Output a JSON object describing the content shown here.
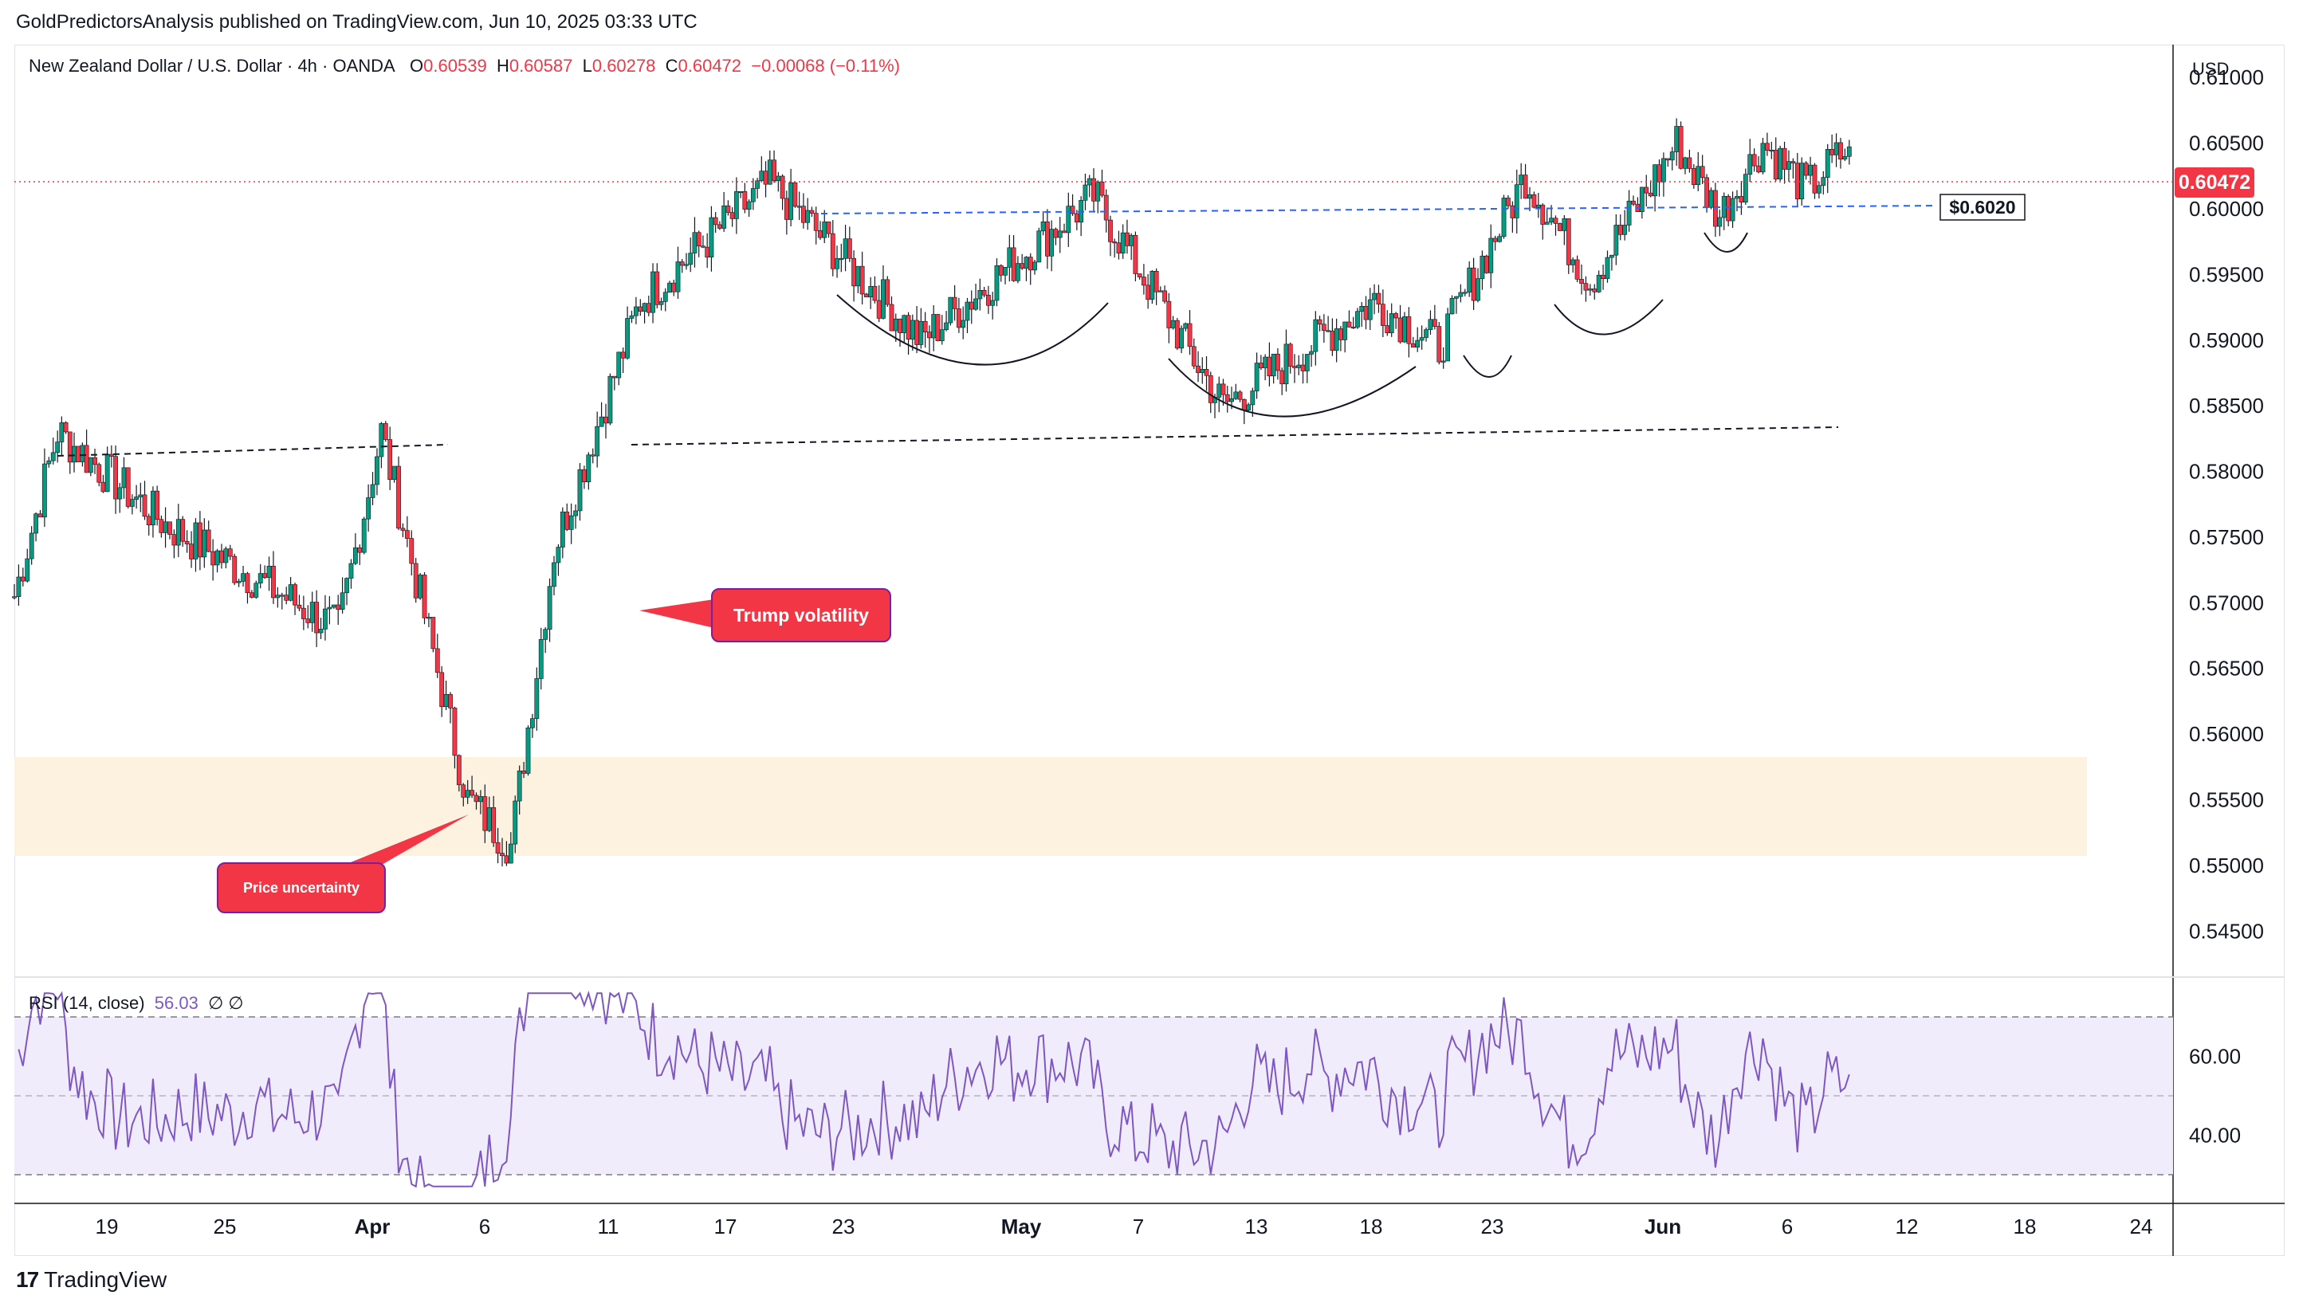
{
  "header": {
    "publisher": "GoldPredictorsAnalysis published on TradingView.com, Jun 10, 2025 03:33 UTC"
  },
  "legend": {
    "symbol": "New Zealand Dollar / U.S. Dollar · 4h · OANDA",
    "o_label": "O",
    "o_value": "0.60539",
    "h_label": "H",
    "h_value": "0.60587",
    "l_label": "L",
    "l_value": "0.60278",
    "c_label": "C",
    "c_value": "0.60472",
    "change": "−0.00068 (−0.11%)"
  },
  "currency": "USD",
  "price_axis": {
    "ticks": [
      "0.61000",
      "0.60500",
      "0.60000",
      "0.59500",
      "0.59000",
      "0.58500",
      "0.58000",
      "0.57500",
      "0.57000",
      "0.56500",
      "0.56000",
      "0.55500",
      "0.55000",
      "0.54500"
    ],
    "current_price": "0.60472",
    "current_color": "#f23645"
  },
  "time_axis": {
    "labels": [
      "19",
      "25",
      "Apr",
      "6",
      "11",
      "17",
      "23",
      "May",
      "7",
      "13",
      "18",
      "23",
      "Jun",
      "6",
      "12",
      "18",
      "24"
    ],
    "bold_labels": [
      "Apr",
      "May",
      "Jun"
    ]
  },
  "annotations": {
    "resistance_label": "$0.6020",
    "trump_callout": "Trump volatility",
    "price_callout": "Price uncertainty"
  },
  "rsi": {
    "name": "RSI",
    "params": "(14, close)",
    "value": "56.03",
    "extra": "∅ ∅",
    "ticks": [
      "60.00",
      "40.00"
    ],
    "color": "#7e57c2"
  },
  "colors": {
    "up": "#089981",
    "down": "#f23645",
    "support_zone": "#fdf1e0",
    "rsi_band": "#f1ecfb",
    "blue_line": "#2962ff"
  },
  "footer": {
    "brand": "TradingView"
  },
  "chart_data": {
    "type": "candlestick",
    "symbol": "NZDUSD",
    "timeframe": "4h",
    "x_range": [
      "2025-03-17",
      "2025-06-25"
    ],
    "y_range": [
      0.5415,
      0.6125
    ],
    "key_points": [
      {
        "date": "2025-03-17",
        "close": 0.5705
      },
      {
        "date": "2025-03-19",
        "close": 0.583
      },
      {
        "date": "2025-03-24",
        "close": 0.576
      },
      {
        "date": "2025-03-28",
        "close": 0.572
      },
      {
        "date": "2025-04-01",
        "close": 0.568
      },
      {
        "date": "2025-04-03",
        "close": 0.583
      },
      {
        "date": "2025-04-07",
        "close": 0.555
      },
      {
        "date": "2025-04-09",
        "close": 0.5515
      },
      {
        "date": "2025-04-11",
        "close": 0.574
      },
      {
        "date": "2025-04-15",
        "close": 0.593
      },
      {
        "date": "2025-04-21",
        "close": 0.602
      },
      {
        "date": "2025-04-28",
        "close": 0.59
      },
      {
        "date": "2025-05-06",
        "close": 0.601
      },
      {
        "date": "2025-05-12",
        "close": 0.585
      },
      {
        "date": "2025-05-19",
        "close": 0.593
      },
      {
        "date": "2025-05-22",
        "close": 0.5895
      },
      {
        "date": "2025-05-26",
        "close": 0.6025
      },
      {
        "date": "2025-05-29",
        "close": 0.5945
      },
      {
        "date": "2025-06-02",
        "close": 0.605
      },
      {
        "date": "2025-06-04",
        "close": 0.5995
      },
      {
        "date": "2025-06-06",
        "close": 0.605
      },
      {
        "date": "2025-06-08",
        "close": 0.6015
      },
      {
        "date": "2025-06-10",
        "close": 0.60472
      }
    ],
    "resistance": 0.602,
    "support_zone": [
      0.551,
      0.559
    ],
    "rsi_levels": [
      30,
      50,
      70
    ]
  }
}
